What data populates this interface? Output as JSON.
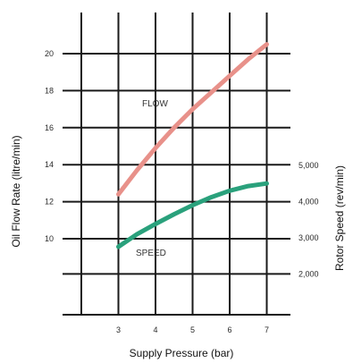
{
  "chart_data": {
    "type": "line",
    "xlabel": "Supply Pressure (bar)",
    "ylabel_left": "Oil Flow Rate (litre/min)",
    "ylabel_right": "Rotor Speed (rev/min)",
    "x_ticks": [
      "3",
      "4",
      "5",
      "6",
      "7"
    ],
    "y_left_ticks": [
      "20",
      "18",
      "16",
      "14",
      "12",
      "10"
    ],
    "y_right_ticks": [
      "5,000",
      "4,000",
      "3,000",
      "2,000"
    ],
    "xlim": [
      2,
      7.5
    ],
    "ylim_left": [
      4,
      22
    ],
    "ylim_right": [
      0,
      9000
    ],
    "grid": true,
    "series": [
      {
        "name": "FLOW",
        "axis": "left",
        "color": "#e8918a",
        "x": [
          3,
          3.5,
          4,
          4.5,
          5,
          5.5,
          6,
          6.5,
          7
        ],
        "y": [
          12.4,
          13.7,
          14.9,
          16.0,
          17.0,
          17.9,
          18.8,
          19.7,
          20.5
        ]
      },
      {
        "name": "SPEED",
        "axis": "right",
        "color": "#2aa17c",
        "x": [
          3,
          3.5,
          4,
          4.5,
          5,
          5.5,
          6,
          6.5,
          7
        ],
        "y": [
          2750,
          3100,
          3380,
          3650,
          3900,
          4120,
          4300,
          4430,
          4500
        ]
      }
    ]
  }
}
